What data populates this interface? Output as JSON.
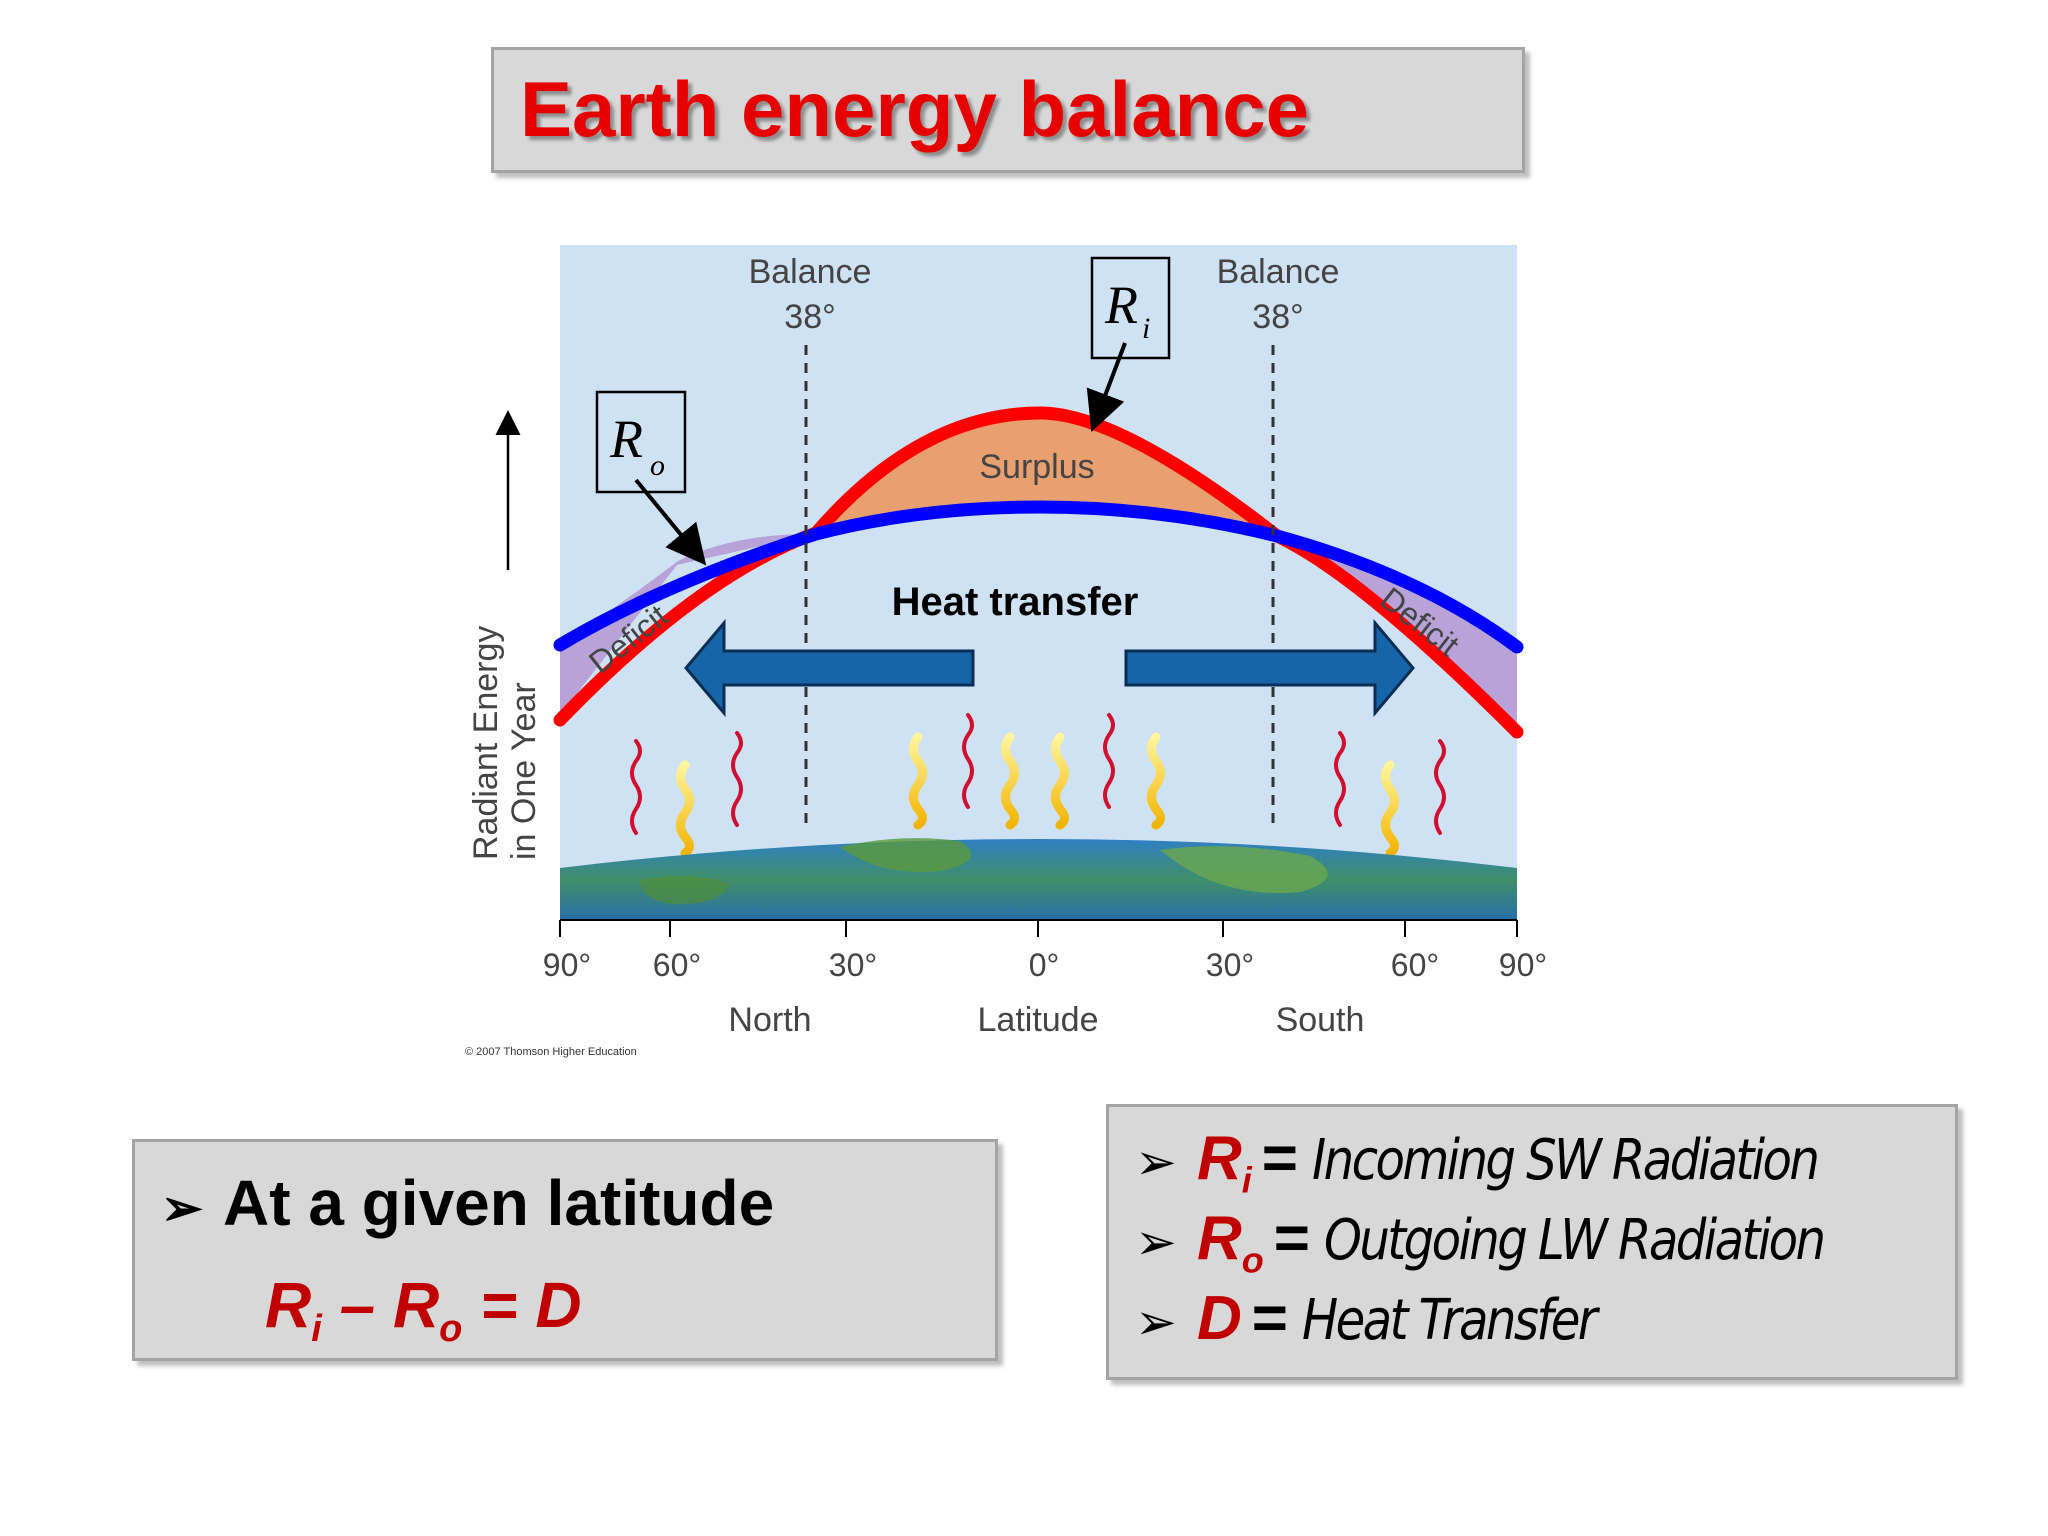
{
  "title": "Earth energy balance",
  "diagram": {
    "balance_left": "Balance",
    "balance_left_deg": "38°",
    "balance_right": "Balance",
    "balance_right_deg": "38°",
    "ri_label": "R",
    "ri_sub": "i",
    "ro_label": "R",
    "ro_sub": "o",
    "surplus": "Surplus",
    "deficit_left": "Deficit",
    "deficit_right": "Deficit",
    "heat_transfer": "Heat transfer",
    "y_axis_line1": "Radiant Energy",
    "y_axis_line2": "in One Year",
    "x_ticks": [
      "90°",
      "60°",
      "30°",
      "0°",
      "30°",
      "60°",
      "90°"
    ],
    "x_north": "North",
    "x_latitude": "Latitude",
    "x_south": "South",
    "copyright": "© 2007 Thomson Higher Education",
    "colors": {
      "incoming": "#ff0000",
      "outgoing": "#0000ff",
      "surplus": "#e8a070",
      "deficit": "#b8a2d8",
      "arrow": "#1565a8",
      "sky": "#cfe2f3"
    }
  },
  "left_box": {
    "bullet": "➢",
    "heading": "At a given latitude",
    "eq_r1": "R",
    "eq_r1_sub": "i",
    "eq_minus": " – ",
    "eq_r2": "R",
    "eq_r2_sub": "o",
    "eq_rest": " = D"
  },
  "right_box": {
    "bullet": "➢",
    "items": [
      {
        "sym": "R",
        "sub": "i",
        "eq": "=",
        "text": "Incoming SW  Radiation"
      },
      {
        "sym": "R",
        "sub": "o",
        "eq": "=",
        "text": "Outgoing LW Radiation"
      },
      {
        "sym": "D",
        "sub": "",
        "eq": "=",
        "text": "Heat Transfer"
      }
    ]
  }
}
